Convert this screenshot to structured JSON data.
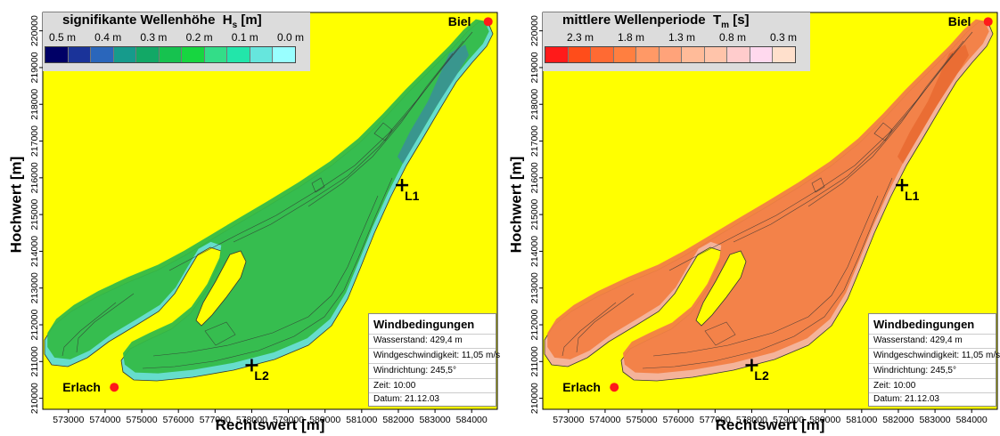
{
  "colors": {
    "land": "#ffff00",
    "pin": "#ff1a1a",
    "contour": "#333333"
  },
  "icons": [
    "red-dot-icon",
    "black-cross-icon"
  ],
  "axes": {
    "x_ticks": [
      "573000",
      "574000",
      "575000",
      "576000",
      "577000",
      "578000",
      "579000",
      "580000",
      "581000",
      "582000",
      "583000",
      "584000"
    ],
    "y_ticks": [
      "220000",
      "219000",
      "218000",
      "217000",
      "216000",
      "215000",
      "214000",
      "213000",
      "212000",
      "211000",
      "210000"
    ],
    "xlim": [
      572300,
      584700
    ],
    "ylim": [
      209700,
      220500
    ]
  },
  "chart_data": [
    {
      "type": "heatmap",
      "xlabel": "Rechtswert [m]",
      "ylabel": "Hochwert [m]",
      "legend_title": "signifikante Wellenhöhe",
      "legend_symbol": "H",
      "legend_sub": "s",
      "legend_unit": "[m]",
      "legend_ticks": [
        "0.5 m",
        "0.4 m",
        "0.3 m",
        "0.2 m",
        "0.1 m",
        "0.0 m"
      ],
      "legend_colors": [
        "#000066",
        "#1a3399",
        "#2a66bb",
        "#169b8c",
        "#12a866",
        "#16c24f",
        "#17d640",
        "#33dd88",
        "#22e6aa",
        "#66e6dd",
        "#99ffff"
      ],
      "lake_fill": "#34bb48",
      "deep_fill": "#3a8f99",
      "shore_fill": "#66ddcc"
    },
    {
      "type": "heatmap",
      "xlabel": "Rechtswert [m]",
      "ylabel": "Hochwert [m]",
      "legend_title": "mittlere Wellenperiode",
      "legend_symbol": "T",
      "legend_sub": "m",
      "legend_unit": "[s]",
      "legend_ticks": [
        "2.3 m",
        "1.8 m",
        "1.3 m",
        "0.8 m",
        "0.3 m"
      ],
      "legend_colors": [
        "#ff1a1a",
        "#ff4d1a",
        "#ff6a33",
        "#ff7f40",
        "#ff9966",
        "#ffa37a",
        "#ffbb99",
        "#ffc4aa",
        "#ffcccc",
        "#ffd9ee",
        "#ffe0cc"
      ],
      "lake_fill": "#f28044",
      "deep_fill": "#e86a30",
      "shore_fill": "#f4b39a"
    }
  ],
  "cities": {
    "biel": {
      "label": "Biel",
      "x": 584450,
      "y": 220250
    },
    "erlach": {
      "label": "Erlach",
      "x": 574250,
      "y": 210300
    }
  },
  "stations": [
    {
      "label": "L1",
      "x": 582100,
      "y": 215800
    },
    {
      "label": "L2",
      "x": 578000,
      "y": 210900
    }
  ],
  "wind": {
    "title": "Windbedingungen",
    "rows": [
      "Wasserstand:   429,4 m",
      "Windgeschwindigkeit: 11,05 m/s",
      "Windrichtung: 245,5°",
      "Zeit:   10:00",
      "Datum:   21.12.03"
    ]
  }
}
